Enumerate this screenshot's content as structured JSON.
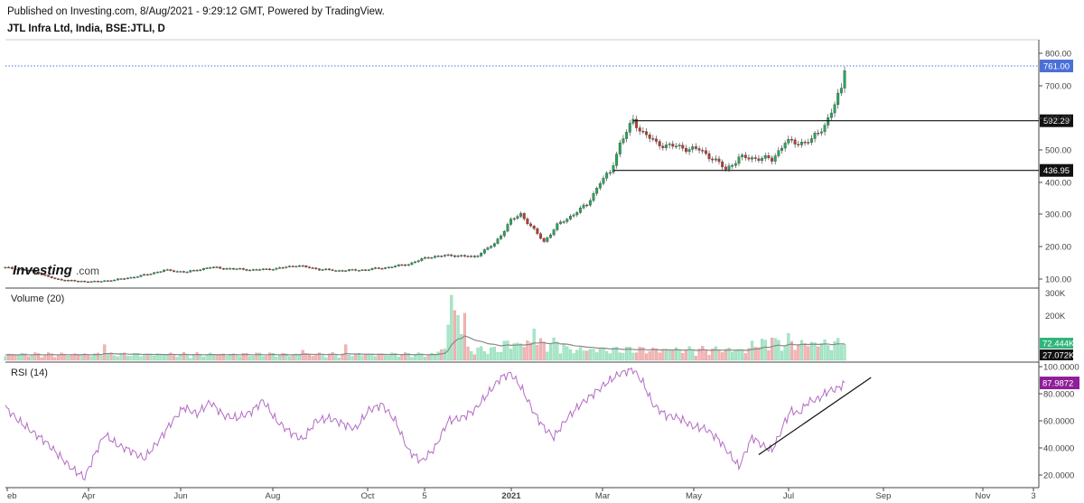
{
  "header": {
    "published": "Published on Investing.com, 8/Aug/2021 - 9:29:12 GMT, Powered by TradingView.",
    "symbol": "JTL Infra Ltd, India, BSE:JTLI, D"
  },
  "watermark": {
    "brand": "Investing",
    "suffix": ".com"
  },
  "colors": {
    "up": "#26a65b",
    "down": "#c0392b",
    "vol_up": "#a8e6c8",
    "vol_down": "#f2b5b5",
    "rsi": "#b36cc4",
    "last_price_badge": "#4b6fd6",
    "level_badge": "#111111",
    "rsi_badge": "#8e1e9a",
    "vol_badge": "#2fb57b"
  },
  "chart_data": [
    {
      "type": "candlestick",
      "panel": "price",
      "title": "JTL Infra Ltd, India, BSE:JTLI, D",
      "x_ticks": [
        "eb",
        "Apr",
        "Jun",
        "Aug",
        "Oct",
        "5",
        "2021",
        "Mar",
        "May",
        "Jul",
        "Sep",
        "Nov",
        "3"
      ],
      "y_ticks": [
        100,
        200,
        300,
        400,
        500,
        600,
        700,
        800
      ],
      "ylim": [
        80,
        830
      ],
      "last_price": 761.0,
      "last_price_label": "761.00",
      "levels": [
        {
          "value": 592.29,
          "label": "592.29"
        },
        {
          "value": 436.95,
          "label": "436.95"
        }
      ],
      "approx_close_path": [
        [
          0,
          135
        ],
        [
          8,
          125
        ],
        [
          15,
          100
        ],
        [
          22,
          93
        ],
        [
          28,
          92
        ],
        [
          35,
          100
        ],
        [
          42,
          112
        ],
        [
          48,
          127
        ],
        [
          55,
          122
        ],
        [
          62,
          136
        ],
        [
          68,
          132
        ],
        [
          75,
          128
        ],
        [
          82,
          132
        ],
        [
          88,
          142
        ],
        [
          95,
          130
        ],
        [
          100,
          126
        ],
        [
          108,
          128
        ],
        [
          115,
          135
        ],
        [
          122,
          146
        ],
        [
          128,
          168
        ],
        [
          135,
          173
        ],
        [
          142,
          168
        ],
        [
          148,
          208
        ],
        [
          153,
          280
        ],
        [
          156,
          300
        ],
        [
          160,
          250
        ],
        [
          163,
          215
        ],
        [
          167,
          265
        ],
        [
          172,
          300
        ],
        [
          176,
          330
        ],
        [
          180,
          400
        ],
        [
          183,
          430
        ],
        [
          186,
          520
        ],
        [
          190,
          592
        ],
        [
          193,
          555
        ],
        [
          197,
          520
        ],
        [
          203,
          510
        ],
        [
          210,
          500
        ],
        [
          214,
          475
        ],
        [
          218,
          440
        ],
        [
          222,
          475
        ],
        [
          228,
          475
        ],
        [
          232,
          470
        ],
        [
          236,
          525
        ],
        [
          240,
          522
        ],
        [
          244,
          530
        ],
        [
          248,
          580
        ],
        [
          251,
          640
        ],
        [
          253,
          690
        ],
        [
          254,
          761
        ]
      ]
    },
    {
      "type": "bar",
      "panel": "volume",
      "title": "Volume (20)",
      "y_ticks_labels": [
        "200K",
        "300K"
      ],
      "y_ticks": [
        200000,
        300000
      ],
      "ylim": [
        0,
        310000
      ],
      "last_volume": "72.444K",
      "ma_value": "27.072K",
      "spikes": [
        {
          "x": 30,
          "value": 70000,
          "dir": "down"
        },
        {
          "x": 90,
          "value": 45000,
          "dir": "down"
        },
        {
          "x": 103,
          "value": 70000,
          "dir": "down"
        },
        {
          "x": 135,
          "value": 290000,
          "dir": "up"
        },
        {
          "x": 137,
          "value": 200000,
          "dir": "up"
        },
        {
          "x": 160,
          "value": 140000,
          "dir": "up"
        },
        {
          "x": 232,
          "value": 100000,
          "dir": "down"
        },
        {
          "x": 237,
          "value": 120000,
          "dir": "up"
        },
        {
          "x": 254,
          "value": 72444,
          "dir": "up"
        }
      ]
    },
    {
      "type": "line",
      "panel": "rsi",
      "title": "RSI (14)",
      "y_ticks": [
        20,
        40,
        60,
        80,
        100
      ],
      "y_tick_labels": [
        "20.0000",
        "40.0000",
        "60.0000",
        "80.0000",
        "100.0000"
      ],
      "ylim": [
        12,
        102
      ],
      "last_value": 87.9872,
      "last_value_label": "87.9872",
      "values": [
        [
          0,
          70
        ],
        [
          4,
          60
        ],
        [
          8,
          52
        ],
        [
          12,
          45
        ],
        [
          16,
          35
        ],
        [
          20,
          25
        ],
        [
          24,
          18
        ],
        [
          27,
          35
        ],
        [
          30,
          50
        ],
        [
          34,
          42
        ],
        [
          38,
          38
        ],
        [
          42,
          32
        ],
        [
          46,
          44
        ],
        [
          50,
          58
        ],
        [
          54,
          70
        ],
        [
          58,
          65
        ],
        [
          62,
          74
        ],
        [
          66,
          64
        ],
        [
          70,
          62
        ],
        [
          74,
          66
        ],
        [
          78,
          75
        ],
        [
          82,
          60
        ],
        [
          86,
          52
        ],
        [
          90,
          46
        ],
        [
          94,
          60
        ],
        [
          98,
          62
        ],
        [
          102,
          58
        ],
        [
          106,
          54
        ],
        [
          110,
          68
        ],
        [
          114,
          72
        ],
        [
          118,
          60
        ],
        [
          122,
          38
        ],
        [
          126,
          30
        ],
        [
          130,
          40
        ],
        [
          134,
          60
        ],
        [
          138,
          62
        ],
        [
          142,
          68
        ],
        [
          146,
          80
        ],
        [
          150,
          92
        ],
        [
          153,
          95
        ],
        [
          156,
          85
        ],
        [
          160,
          66
        ],
        [
          163,
          55
        ],
        [
          166,
          48
        ],
        [
          170,
          62
        ],
        [
          174,
          72
        ],
        [
          178,
          80
        ],
        [
          182,
          88
        ],
        [
          186,
          95
        ],
        [
          190,
          98
        ],
        [
          193,
          88
        ],
        [
          196,
          72
        ],
        [
          200,
          64
        ],
        [
          204,
          62
        ],
        [
          208,
          56
        ],
        [
          212,
          54
        ],
        [
          216,
          46
        ],
        [
          219,
          36
        ],
        [
          222,
          26
        ],
        [
          226,
          48
        ],
        [
          229,
          42
        ],
        [
          232,
          38
        ],
        [
          234,
          48
        ],
        [
          236,
          60
        ],
        [
          238,
          68
        ],
        [
          240,
          65
        ],
        [
          243,
          74
        ],
        [
          246,
          76
        ],
        [
          249,
          82
        ],
        [
          252,
          84
        ],
        [
          254,
          87.99
        ]
      ],
      "trendline": [
        [
          228,
          35
        ],
        [
          262,
          92
        ]
      ]
    }
  ]
}
